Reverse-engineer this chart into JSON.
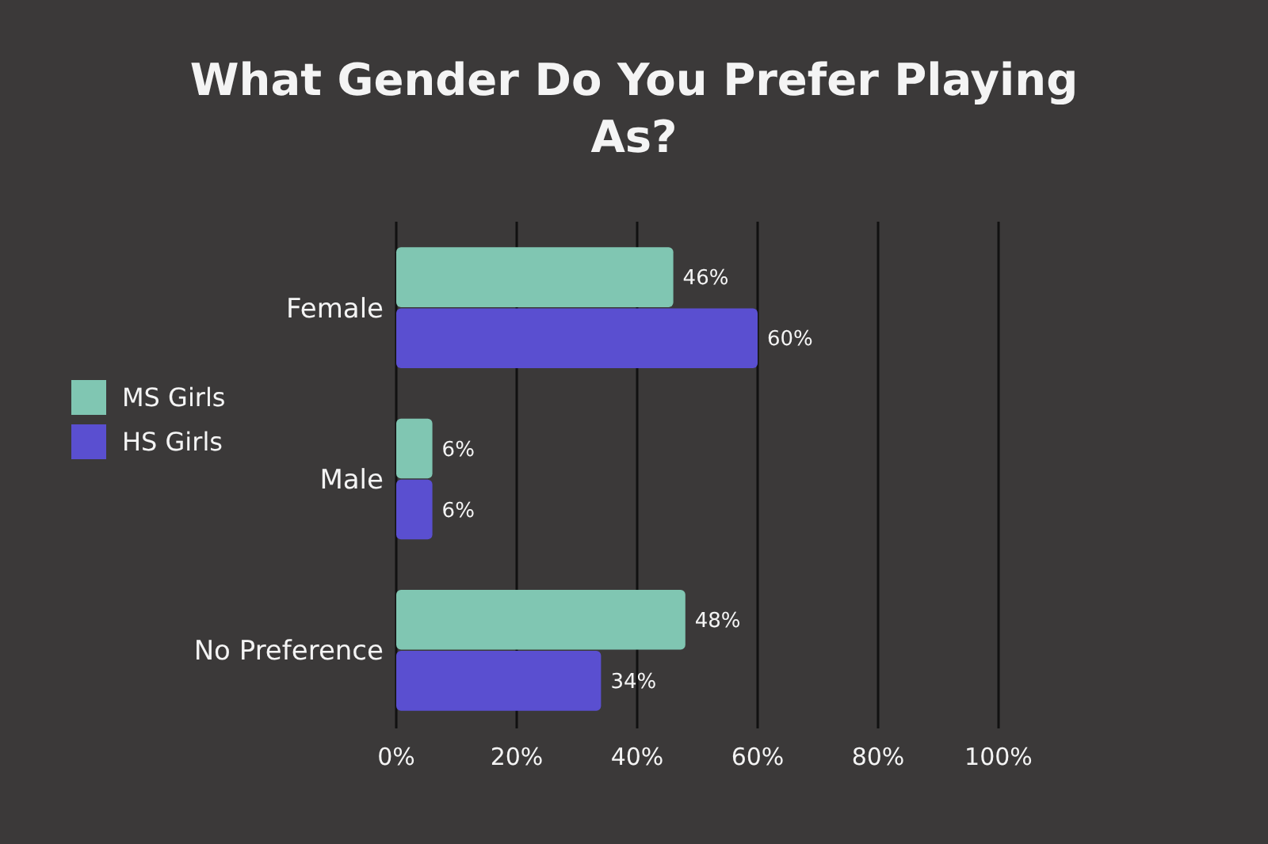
{
  "chart_data": {
    "type": "bar",
    "orientation": "horizontal",
    "title": "What Gender Do You Prefer Playing As?",
    "categories": [
      "Female",
      "Male",
      "No Preference"
    ],
    "series": [
      {
        "name": "MS Girls",
        "color": "#80c6b2",
        "values": [
          46,
          6,
          48
        ],
        "value_labels": [
          "46%",
          "6%",
          "48%"
        ]
      },
      {
        "name": "HS Girls",
        "color": "#5a4fd0",
        "values": [
          60,
          6,
          34
        ],
        "value_labels": [
          "60%",
          "6%",
          "34%"
        ]
      }
    ],
    "xlim": [
      0,
      100
    ],
    "xticks": [
      {
        "value": 0,
        "label": "0%"
      },
      {
        "value": 20,
        "label": "20%"
      },
      {
        "value": 40,
        "label": "40%"
      },
      {
        "value": 60,
        "label": "60%"
      },
      {
        "value": 80,
        "label": "80%"
      },
      {
        "value": 100,
        "label": "100%"
      }
    ],
    "grid": "x",
    "legend": "left"
  }
}
